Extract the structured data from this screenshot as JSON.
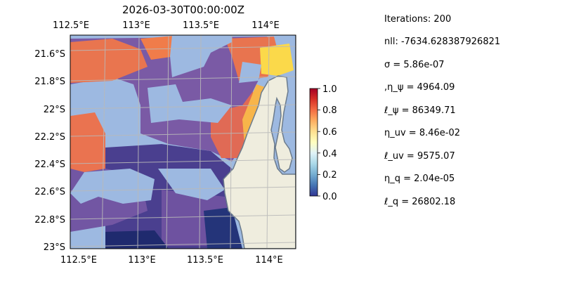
{
  "chart_data": {
    "type": "heatmap",
    "title": "2026-03-30T00:00:00Z",
    "top_x_ticks": [
      "112.5°E",
      "113°E",
      "113.5°E",
      "114°E"
    ],
    "bottom_x_ticks": [
      "112.5°E",
      "113°E",
      "113.5°E",
      "114°E"
    ],
    "y_ticks": [
      "21.6°S",
      "21.8°S",
      "22°S",
      "22.2°S",
      "22.4°S",
      "22.6°S",
      "22.8°S",
      "23°S"
    ],
    "lon_range": [
      112.5,
      114.2
    ],
    "lat_range": [
      -23.0,
      -21.5
    ],
    "grid": true,
    "colormap": "RdYlBu_r",
    "colorbar": {
      "ticks": [
        "0.0",
        "0.2",
        "0.4",
        "0.6",
        "0.8",
        "1.0"
      ],
      "range": [
        0,
        1
      ]
    },
    "colors": {
      "land": "#efedde",
      "masked_ocean": "#9db9e1",
      "low_value": "#3b3d8c",
      "mid_value": "#7c5aa6",
      "high_value": "#f57b4c",
      "peak_value": "#fbd94a",
      "coastline": "#6b7b8c",
      "grid": "#b9b9b9"
    }
  },
  "params": [
    {
      "text": "Iterations: 200"
    },
    {
      "text": "nll: -7634.628387926821"
    },
    {
      "text": "σ = 5.86e-07"
    },
    {
      "text": ",η_ψ = 4964.09"
    },
    {
      "text": "ℓ_ψ = 86349.71"
    },
    {
      "text": "η_uv = 8.46e-02"
    },
    {
      "text": "ℓ_uv = 9575.07"
    },
    {
      "text": "η_q = 2.04e-05"
    },
    {
      "text": "ℓ_q = 26802.18"
    }
  ]
}
